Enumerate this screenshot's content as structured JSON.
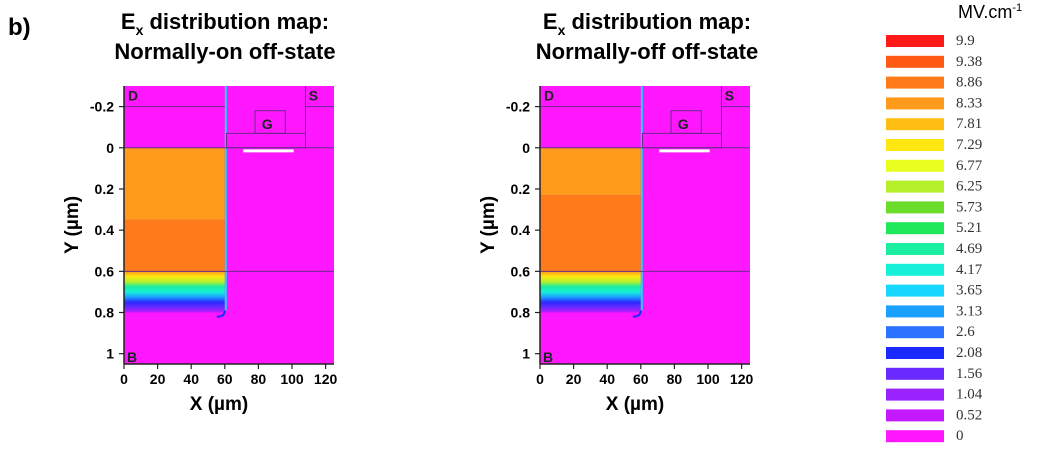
{
  "panel_label": "b)",
  "colorbar": {
    "unit_main": "MV.cm",
    "unit_exp": "-1",
    "labels": [
      "9.9",
      "9.38",
      "8.86",
      "8.33",
      "7.81",
      "7.29",
      "6.77",
      "6.25",
      "5.73",
      "5.21",
      "4.69",
      "4.17",
      "3.65",
      "3.13",
      "2.6",
      "2.08",
      "1.56",
      "1.04",
      "0.52",
      "0"
    ],
    "colors": [
      "#ff1a1a",
      "#ff5a14",
      "#ff7a18",
      "#ff9a1a",
      "#ffbe14",
      "#ffe610",
      "#e8ff20",
      "#b6f02a",
      "#6cdc2a",
      "#1ee85a",
      "#1aeea0",
      "#16f0d8",
      "#18d8ff",
      "#1aa0ff",
      "#2a72ff",
      "#1a2aff",
      "#6a2aff",
      "#9a22ff",
      "#c418ff",
      "#ff18ff"
    ]
  },
  "chart_data": [
    {
      "type": "heatmap",
      "title_prefix": "E",
      "title_sub": "x",
      "title_line1_rest": " distribution map:",
      "title_line2": "Normally-on off-state",
      "xlabel": "X (µm)",
      "ylabel": "Y (µm)",
      "xlim": [
        0,
        125
      ],
      "ylim": [
        -0.3,
        1.05
      ],
      "x_ticks": [
        0,
        20,
        40,
        60,
        80,
        100,
        120
      ],
      "y_ticks": [
        -0.2,
        0,
        0.2,
        0.4,
        0.6,
        0.8,
        1
      ],
      "region_labels": {
        "drain": "D",
        "source": "S",
        "gate": "G",
        "bulk": "B"
      },
      "field_bands": [
        {
          "y0": 0.0,
          "y1": 0.35,
          "value": 8.33
        },
        {
          "y0": 0.35,
          "y1": 0.6,
          "value": 8.86
        }
      ]
    },
    {
      "type": "heatmap",
      "title_prefix": "E",
      "title_sub": "x",
      "title_line1_rest": " distribution map:",
      "title_line2": "Normally-off off-state",
      "xlabel": "X (µm)",
      "ylabel": "Y (µm)",
      "xlim": [
        0,
        125
      ],
      "ylim": [
        -0.3,
        1.05
      ],
      "x_ticks": [
        0,
        20,
        40,
        60,
        80,
        100,
        120
      ],
      "y_ticks": [
        -0.2,
        0,
        0.2,
        0.4,
        0.6,
        0.8,
        1
      ],
      "region_labels": {
        "drain": "D",
        "source": "S",
        "gate": "G",
        "bulk": "B"
      },
      "field_bands": [
        {
          "y0": 0.0,
          "y1": 0.23,
          "value": 8.33
        },
        {
          "y0": 0.23,
          "y1": 0.6,
          "value": 8.86
        }
      ]
    }
  ]
}
